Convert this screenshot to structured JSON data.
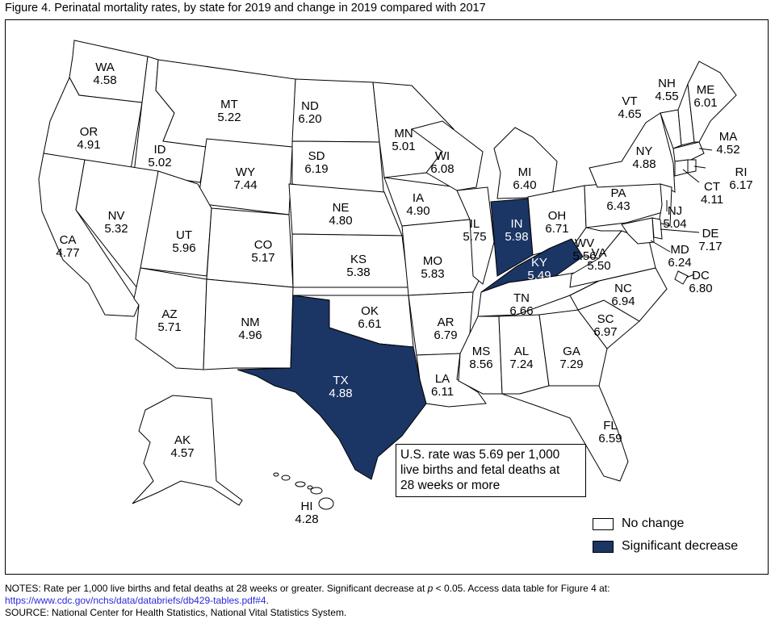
{
  "title": "Figure 4. Perinatal mortality rates, by state for 2019 and change in 2019 compared with 2017",
  "map": {
    "colors": {
      "no_change": "#ffffff",
      "significant_decrease": "#1b3564"
    },
    "states": [
      {
        "abbr": "WA",
        "rate": "4.58",
        "status": "no_change"
      },
      {
        "abbr": "OR",
        "rate": "4.91",
        "status": "no_change"
      },
      {
        "abbr": "CA",
        "rate": "4.77",
        "status": "no_change"
      },
      {
        "abbr": "ID",
        "rate": "5.02",
        "status": "no_change"
      },
      {
        "abbr": "NV",
        "rate": "5.32",
        "status": "no_change"
      },
      {
        "abbr": "MT",
        "rate": "5.22",
        "status": "no_change"
      },
      {
        "abbr": "WY",
        "rate": "7.44",
        "status": "no_change"
      },
      {
        "abbr": "UT",
        "rate": "5.96",
        "status": "no_change"
      },
      {
        "abbr": "AZ",
        "rate": "5.71",
        "status": "no_change"
      },
      {
        "abbr": "CO",
        "rate": "5.17",
        "status": "no_change"
      },
      {
        "abbr": "NM",
        "rate": "4.96",
        "status": "no_change"
      },
      {
        "abbr": "ND",
        "rate": "6.20",
        "status": "no_change"
      },
      {
        "abbr": "SD",
        "rate": "6.19",
        "status": "no_change"
      },
      {
        "abbr": "NE",
        "rate": "4.80",
        "status": "no_change"
      },
      {
        "abbr": "KS",
        "rate": "5.38",
        "status": "no_change"
      },
      {
        "abbr": "OK",
        "rate": "6.61",
        "status": "no_change"
      },
      {
        "abbr": "TX",
        "rate": "4.88",
        "status": "significant_decrease"
      },
      {
        "abbr": "MN",
        "rate": "5.01",
        "status": "no_change"
      },
      {
        "abbr": "IA",
        "rate": "4.90",
        "status": "no_change"
      },
      {
        "abbr": "MO",
        "rate": "5.83",
        "status": "no_change"
      },
      {
        "abbr": "AR",
        "rate": "6.79",
        "status": "no_change"
      },
      {
        "abbr": "LA",
        "rate": "6.11",
        "status": "no_change"
      },
      {
        "abbr": "WI",
        "rate": "6.08",
        "status": "no_change"
      },
      {
        "abbr": "IL",
        "rate": "5.75",
        "status": "no_change"
      },
      {
        "abbr": "MI",
        "rate": "6.40",
        "status": "no_change"
      },
      {
        "abbr": "IN",
        "rate": "5.98",
        "status": "significant_decrease"
      },
      {
        "abbr": "OH",
        "rate": "6.71",
        "status": "no_change"
      },
      {
        "abbr": "KY",
        "rate": "5.49",
        "status": "significant_decrease"
      },
      {
        "abbr": "TN",
        "rate": "6.66",
        "status": "no_change"
      },
      {
        "abbr": "MS",
        "rate": "8.56",
        "status": "no_change"
      },
      {
        "abbr": "AL",
        "rate": "7.24",
        "status": "no_change"
      },
      {
        "abbr": "GA",
        "rate": "7.29",
        "status": "no_change"
      },
      {
        "abbr": "FL",
        "rate": "6.59",
        "status": "no_change"
      },
      {
        "abbr": "SC",
        "rate": "6.97",
        "status": "no_change"
      },
      {
        "abbr": "NC",
        "rate": "6.94",
        "status": "no_change"
      },
      {
        "abbr": "VA",
        "rate": "5.50",
        "status": "no_change"
      },
      {
        "abbr": "WV",
        "rate": "5.56",
        "status": "no_change"
      },
      {
        "abbr": "PA",
        "rate": "6.43",
        "status": "no_change"
      },
      {
        "abbr": "NY",
        "rate": "4.88",
        "status": "no_change"
      },
      {
        "abbr": "VT",
        "rate": "4.65",
        "status": "no_change"
      },
      {
        "abbr": "NH",
        "rate": "4.55",
        "status": "no_change"
      },
      {
        "abbr": "ME",
        "rate": "6.01",
        "status": "no_change"
      },
      {
        "abbr": "MA",
        "rate": "4.52",
        "status": "no_change"
      },
      {
        "abbr": "RI",
        "rate": "6.17",
        "status": "no_change"
      },
      {
        "abbr": "CT",
        "rate": "4.11",
        "status": "no_change"
      },
      {
        "abbr": "NJ",
        "rate": "5.04",
        "status": "no_change"
      },
      {
        "abbr": "DE",
        "rate": "7.17",
        "status": "no_change"
      },
      {
        "abbr": "MD",
        "rate": "6.24",
        "status": "no_change"
      },
      {
        "abbr": "DC",
        "rate": "6.80",
        "status": "no_change"
      },
      {
        "abbr": "AK",
        "rate": "4.57",
        "status": "no_change"
      },
      {
        "abbr": "HI",
        "rate": "4.28",
        "status": "no_change"
      }
    ]
  },
  "note_box": {
    "lines": [
      "U.S. rate was 5.69 per 1,000",
      "live births and fetal deaths at",
      "28 weeks or more"
    ]
  },
  "legend": {
    "no_change": "No change",
    "significant_decrease": "Significant decrease"
  },
  "footer": {
    "notes_prefix": "NOTES: Rate per 1,000 live births and fetal deaths at 28 weeks or greater. Significant decrease at ",
    "p_symbol": "p",
    "notes_suffix": " < 0.05. Access data table for Figure 4 at:",
    "link": "https://www.cdc.gov/nchs/data/databriefs/db429-tables.pdf#4",
    "link_suffix": ".",
    "source": "SOURCE: National Center for Health Statistics, National Vital Statistics System."
  }
}
